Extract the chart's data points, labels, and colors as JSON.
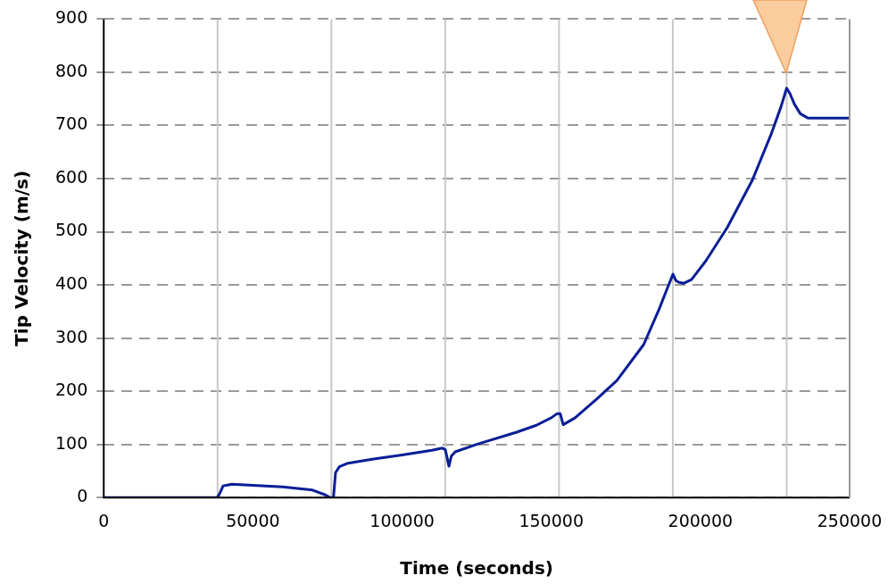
{
  "chart_data": {
    "type": "line",
    "xlabel": "Time (seconds)",
    "ylabel": "Tip Velocity (m/s)",
    "xlim": [
      0,
      250000
    ],
    "xticks": [
      0,
      50000,
      100000,
      150000,
      200000,
      250000
    ],
    "ylim": [
      0,
      900
    ],
    "yticks": [
      0,
      100,
      200,
      300,
      400,
      500,
      600,
      700,
      800,
      900
    ],
    "grid": "y",
    "legend": false,
    "marker": "none",
    "line_style": "solid",
    "ref_lines": [
      {
        "axis": "x",
        "value": 38150,
        "color": "#c8c8c8"
      },
      {
        "axis": "x",
        "value": 76300,
        "color": "#c8c8c8"
      },
      {
        "axis": "x",
        "value": 114450,
        "color": "#c8c8c8"
      },
      {
        "axis": "x",
        "value": 152600,
        "color": "#c8c8c8"
      },
      {
        "axis": "x",
        "value": 190750,
        "color": "#c8c8c8"
      },
      {
        "axis": "x",
        "value": 228900,
        "color": "#c8c8c8"
      }
    ],
    "series": [
      {
        "color": "#0a1e96",
        "x": [
          0,
          38000,
          38900,
          40000,
          43000,
          50000,
          60000,
          70000,
          74300,
          75900,
          77000,
          77700,
          79000,
          81500,
          90000,
          100000,
          110000,
          113500,
          114500,
          115700,
          116500,
          117800,
          125000,
          138400,
          145000,
          150000,
          152000,
          153000,
          154000,
          158000,
          165400,
          172000,
          181000,
          186200,
          189000,
          190800,
          191800,
          192800,
          194300,
          197000,
          201800,
          209000,
          217400,
          223600,
          227000,
          228900,
          230000,
          231500,
          233500,
          236000,
          250000
        ],
        "values": [
          0,
          0,
          8,
          22,
          25,
          23,
          20,
          14,
          5,
          0,
          0,
          47,
          58,
          64,
          72,
          80,
          89,
          93,
          90,
          59,
          78,
          86,
          100,
          123,
          136,
          150,
          158,
          158,
          137,
          150,
          186,
          220,
          288,
          355,
          395,
          420,
          408,
          405,
          403,
          410,
          445,
          508,
          597,
          682,
          735,
          770,
          760,
          740,
          722,
          714,
          714
        ]
      }
    ]
  }
}
